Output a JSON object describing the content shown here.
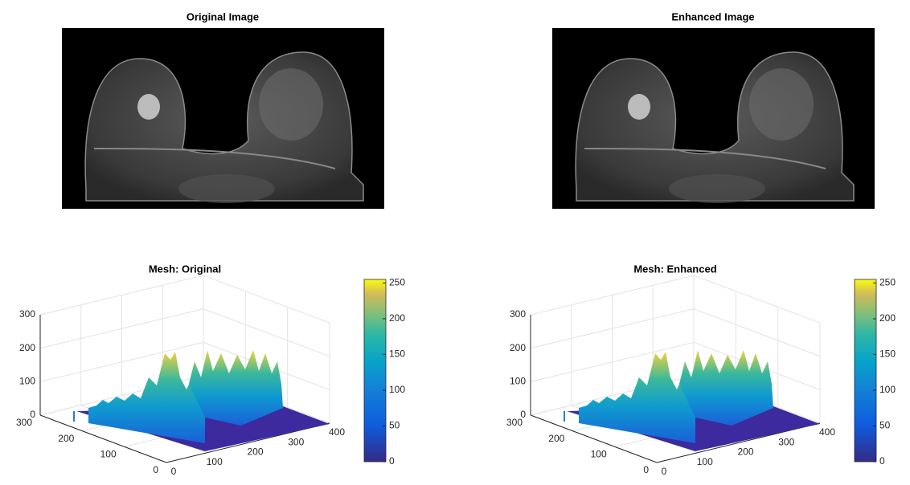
{
  "chart_data": [
    {
      "type": "image",
      "title": "Original Image"
    },
    {
      "type": "image",
      "title": "Enhanced Image"
    },
    {
      "type": "mesh",
      "title": "Mesh: Original",
      "xlim": [
        0,
        400
      ],
      "ylim": [
        0,
        300
      ],
      "zlim": [
        0,
        300
      ],
      "xticks": [
        0,
        100,
        200,
        300,
        400
      ],
      "yticks": [
        0,
        100,
        200,
        300
      ],
      "zticks": [
        0,
        100,
        200,
        300
      ],
      "clim": [
        0,
        255
      ],
      "cticks": [
        0,
        50,
        100,
        150,
        200,
        250
      ]
    },
    {
      "type": "mesh",
      "title": "Mesh: Enhanced",
      "xlim": [
        0,
        400
      ],
      "ylim": [
        0,
        300
      ],
      "zlim": [
        0,
        300
      ],
      "xticks": [
        0,
        100,
        200,
        300,
        400
      ],
      "yticks": [
        0,
        100,
        200,
        300
      ],
      "zticks": [
        0,
        100,
        200,
        300
      ],
      "clim": [
        0,
        255
      ],
      "cticks": [
        0,
        50,
        100,
        150,
        200,
        250
      ]
    }
  ]
}
